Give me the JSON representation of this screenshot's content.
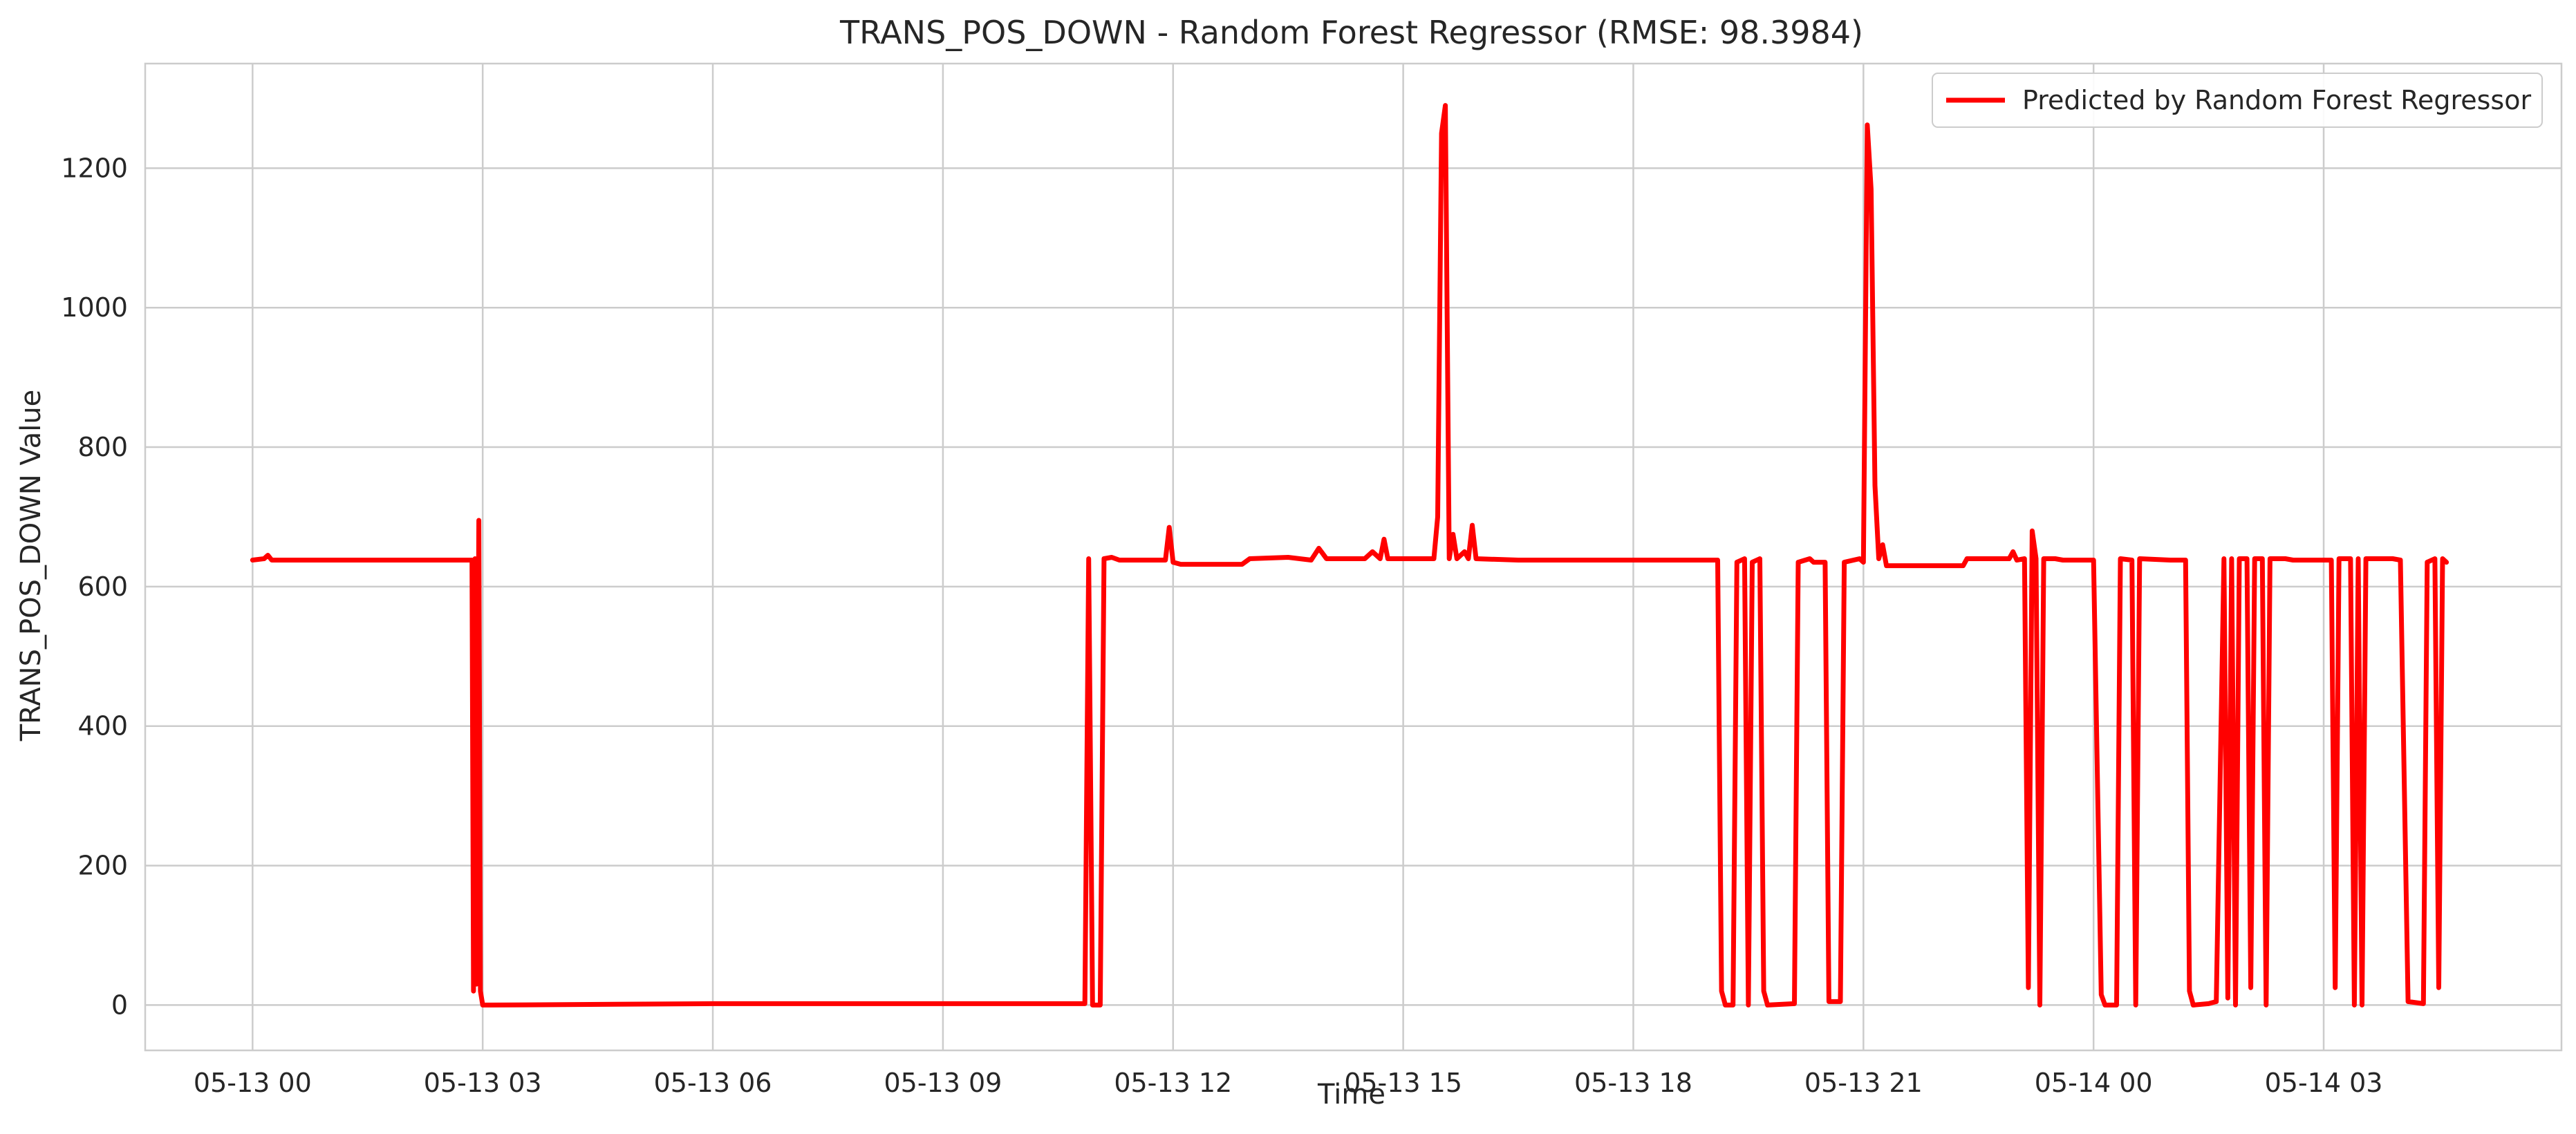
{
  "chart_data": {
    "type": "line",
    "title": "TRANS_POS_DOWN - Random Forest Regressor (RMSE: 98.3984)",
    "xlabel": "Time",
    "ylabel": "TRANS_POS_DOWN Value",
    "x_tick_labels": [
      "05-13 00",
      "05-13 03",
      "05-13 06",
      "05-13 09",
      "05-13 12",
      "05-13 15",
      "05-13 18",
      "05-13 21",
      "05-14 00",
      "05-14 03"
    ],
    "x_tick_hours": [
      0,
      3,
      6,
      9,
      12,
      15,
      18,
      21,
      24,
      27
    ],
    "xlim_hours": [
      -1.4,
      30.1
    ],
    "y_ticks": [
      0,
      200,
      400,
      600,
      800,
      1000,
      1200
    ],
    "ylim": [
      -65,
      1350
    ],
    "grid": true,
    "legend_position": "top-right",
    "series": [
      {
        "name": "Predicted by Random Forest Regressor",
        "color": "#ff0000",
        "points": [
          [
            0.0,
            638
          ],
          [
            0.15,
            640
          ],
          [
            0.2,
            645
          ],
          [
            0.25,
            638
          ],
          [
            1.0,
            638
          ],
          [
            2.0,
            638
          ],
          [
            2.86,
            638
          ],
          [
            2.88,
            20
          ],
          [
            2.9,
            640
          ],
          [
            2.92,
            30
          ],
          [
            2.95,
            695
          ],
          [
            2.97,
            20
          ],
          [
            3.0,
            0
          ],
          [
            3.1,
            0
          ],
          [
            6.0,
            2
          ],
          [
            9.0,
            2
          ],
          [
            10.85,
            2
          ],
          [
            10.9,
            640
          ],
          [
            10.95,
            0
          ],
          [
            11.05,
            0
          ],
          [
            11.1,
            640
          ],
          [
            11.2,
            642
          ],
          [
            11.3,
            638
          ],
          [
            11.9,
            638
          ],
          [
            11.95,
            685
          ],
          [
            12.0,
            635
          ],
          [
            12.1,
            632
          ],
          [
            12.5,
            632
          ],
          [
            12.9,
            632
          ],
          [
            13.0,
            640
          ],
          [
            13.5,
            642
          ],
          [
            13.8,
            638
          ],
          [
            13.9,
            655
          ],
          [
            14.0,
            640
          ],
          [
            14.5,
            640
          ],
          [
            14.6,
            650
          ],
          [
            14.7,
            640
          ],
          [
            14.75,
            668
          ],
          [
            14.8,
            640
          ],
          [
            15.4,
            640
          ],
          [
            15.45,
            700
          ],
          [
            15.5,
            1250
          ],
          [
            15.55,
            1290
          ],
          [
            15.6,
            640
          ],
          [
            15.65,
            675
          ],
          [
            15.7,
            640
          ],
          [
            15.8,
            650
          ],
          [
            15.85,
            640
          ],
          [
            15.9,
            688
          ],
          [
            15.95,
            640
          ],
          [
            16.5,
            638
          ],
          [
            17.5,
            638
          ],
          [
            18.5,
            638
          ],
          [
            19.1,
            638
          ],
          [
            19.15,
            20
          ],
          [
            19.2,
            0
          ],
          [
            19.3,
            0
          ],
          [
            19.35,
            635
          ],
          [
            19.45,
            640
          ],
          [
            19.5,
            0
          ],
          [
            19.55,
            635
          ],
          [
            19.65,
            640
          ],
          [
            19.7,
            20
          ],
          [
            19.75,
            0
          ],
          [
            20.1,
            2
          ],
          [
            20.15,
            635
          ],
          [
            20.3,
            640
          ],
          [
            20.35,
            635
          ],
          [
            20.5,
            635
          ],
          [
            20.55,
            5
          ],
          [
            20.7,
            5
          ],
          [
            20.75,
            635
          ],
          [
            20.95,
            640
          ],
          [
            21.0,
            635
          ],
          [
            21.05,
            1262
          ],
          [
            21.1,
            1170
          ],
          [
            21.15,
            745
          ],
          [
            21.2,
            640
          ],
          [
            21.25,
            660
          ],
          [
            21.3,
            630
          ],
          [
            22.3,
            630
          ],
          [
            22.35,
            640
          ],
          [
            22.9,
            640
          ],
          [
            22.95,
            650
          ],
          [
            23.0,
            638
          ],
          [
            23.1,
            640
          ],
          [
            23.15,
            25
          ],
          [
            23.2,
            680
          ],
          [
            23.25,
            640
          ],
          [
            23.3,
            0
          ],
          [
            23.35,
            640
          ],
          [
            23.5,
            640
          ],
          [
            23.6,
            638
          ],
          [
            24.0,
            638
          ],
          [
            24.1,
            15
          ],
          [
            24.15,
            0
          ],
          [
            24.3,
            0
          ],
          [
            24.35,
            640
          ],
          [
            24.5,
            638
          ],
          [
            24.55,
            0
          ],
          [
            24.6,
            640
          ],
          [
            25.0,
            638
          ],
          [
            25.2,
            638
          ],
          [
            25.25,
            20
          ],
          [
            25.3,
            0
          ],
          [
            25.5,
            2
          ],
          [
            25.6,
            5
          ],
          [
            25.7,
            640
          ],
          [
            25.75,
            10
          ],
          [
            25.8,
            640
          ],
          [
            25.85,
            0
          ],
          [
            25.9,
            640
          ],
          [
            26.0,
            640
          ],
          [
            26.05,
            25
          ],
          [
            26.1,
            640
          ],
          [
            26.2,
            640
          ],
          [
            26.25,
            0
          ],
          [
            26.3,
            640
          ],
          [
            26.5,
            640
          ],
          [
            26.6,
            638
          ],
          [
            27.1,
            638
          ],
          [
            27.15,
            25
          ],
          [
            27.2,
            640
          ],
          [
            27.35,
            640
          ],
          [
            27.4,
            0
          ],
          [
            27.45,
            640
          ],
          [
            27.5,
            0
          ],
          [
            27.55,
            640
          ],
          [
            27.9,
            640
          ],
          [
            28.0,
            638
          ],
          [
            28.1,
            5
          ],
          [
            28.3,
            2
          ],
          [
            28.35,
            635
          ],
          [
            28.45,
            640
          ],
          [
            28.5,
            25
          ],
          [
            28.55,
            640
          ],
          [
            28.6,
            635
          ]
        ]
      }
    ]
  }
}
